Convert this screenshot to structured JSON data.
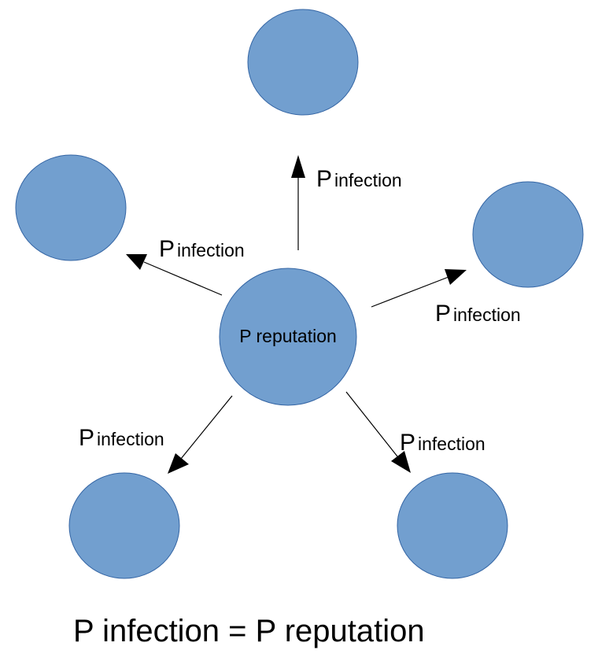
{
  "colors": {
    "node_fill": "#729fcf",
    "node_stroke": "#3465a4",
    "edge": "#000000",
    "text": "#000000"
  },
  "center": {
    "label": "P reputation"
  },
  "edges": [
    {
      "prefix": "P",
      "word": "infection"
    },
    {
      "prefix": "P",
      "word": "infection"
    },
    {
      "prefix": "P",
      "word": "infection"
    },
    {
      "prefix": "P",
      "word": "infection"
    },
    {
      "prefix": "P",
      "word": "infection"
    }
  ],
  "formula": "P infection = P reputation"
}
